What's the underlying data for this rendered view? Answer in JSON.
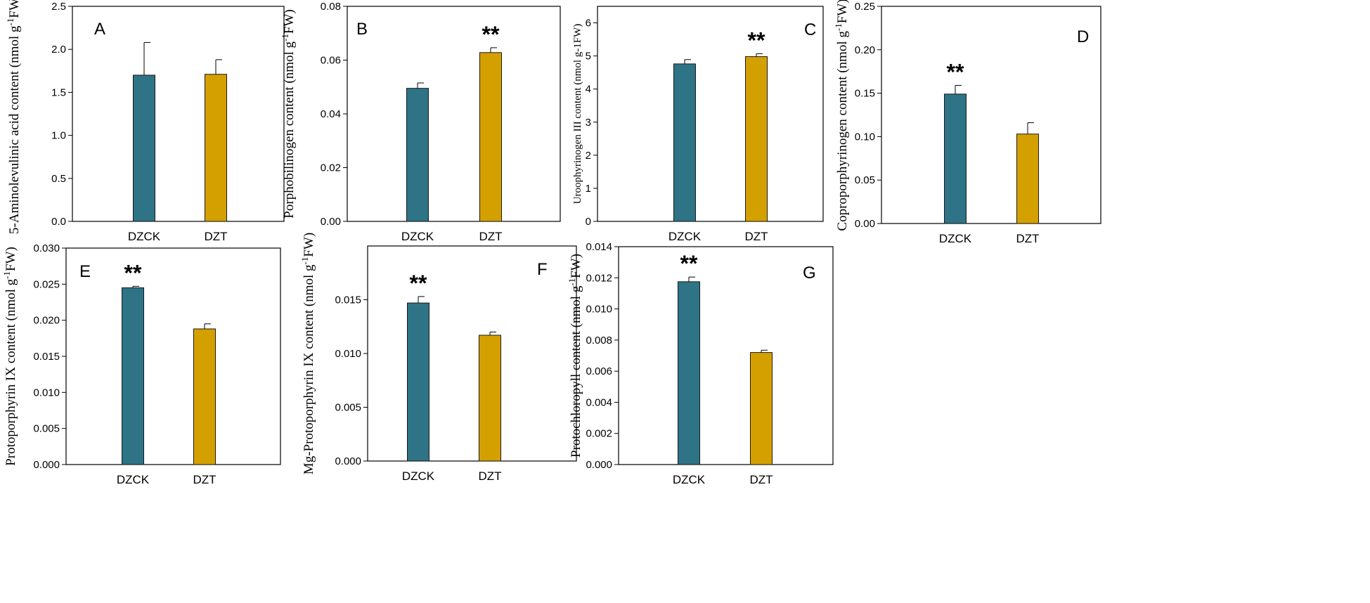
{
  "figure": {
    "colors": {
      "DZCK": "#2e7386",
      "DZT": "#d4a000",
      "axis": "#000000"
    }
  },
  "chart_data": [
    {
      "type": "bar",
      "panel": "A",
      "categories": [
        "DZCK",
        "DZT"
      ],
      "values": [
        1.7,
        1.71
      ],
      "errors": [
        0.38,
        0.17
      ],
      "ylim": [
        0,
        2.5
      ],
      "yticks": [
        "0.0",
        "0.5",
        "1.0",
        "1.5",
        "2.0",
        "2.5"
      ],
      "ylabel": {
        "pre": "5-Aminolevulinic acid content (nmol g",
        "sup": "-1",
        "post": "FW)"
      },
      "significance": [
        "",
        ""
      ]
    },
    {
      "type": "bar",
      "panel": "B",
      "categories": [
        "DZCK",
        "DZT"
      ],
      "values": [
        0.0495,
        0.0628
      ],
      "errors": [
        0.002,
        0.0018
      ],
      "ylim": [
        0,
        0.08
      ],
      "yticks": [
        "0.00",
        "0.02",
        "0.04",
        "0.06",
        "0.08"
      ],
      "ylabel": {
        "pre": "Porphobilinogen  content (nmol g",
        "sup": "-1",
        "post": "FW)"
      },
      "significance": [
        "",
        "**"
      ]
    },
    {
      "type": "bar",
      "panel": "C",
      "categories": [
        "DZCK",
        "DZT"
      ],
      "values": [
        4.76,
        4.98
      ],
      "errors": [
        0.13,
        0.09
      ],
      "ylim": [
        0,
        6.5
      ],
      "yticks": [
        "0",
        "1",
        "2",
        "3",
        "4",
        "5",
        "6"
      ],
      "ylabel": {
        "pre": "Uroophyrinogen III content (nmol g-1FW)",
        "sup": "",
        "post": ""
      },
      "significance": [
        "",
        "**"
      ]
    },
    {
      "type": "bar",
      "panel": "D",
      "categories": [
        "DZCK",
        "DZT"
      ],
      "values": [
        0.149,
        0.103
      ],
      "errors": [
        0.01,
        0.013
      ],
      "ylim": [
        0,
        0.25
      ],
      "yticks": [
        "0.00",
        "0.05",
        "0.10",
        "0.15",
        "0.20",
        "0.25"
      ],
      "ylabel": {
        "pre": "Coproporphyrinogen  content (nmol g",
        "sup": "-1",
        "post": "FW)"
      },
      "significance": [
        "**",
        ""
      ]
    },
    {
      "type": "bar",
      "panel": "E",
      "categories": [
        "DZCK",
        "DZT"
      ],
      "values": [
        0.0245,
        0.0188
      ],
      "errors": [
        0.0002,
        0.0007
      ],
      "ylim": [
        0,
        0.03
      ],
      "yticks": [
        "0.000",
        "0.005",
        "0.010",
        "0.015",
        "0.020",
        "0.025",
        "0.030"
      ],
      "ylabel": {
        "pre": "Protoporphyrin IX content (nmol g",
        "sup": "-1",
        "post": "FW)"
      },
      "significance": [
        "**",
        ""
      ]
    },
    {
      "type": "bar",
      "panel": "F",
      "categories": [
        "DZCK",
        "DZT"
      ],
      "values": [
        0.0147,
        0.0117
      ],
      "errors": [
        0.0006,
        0.0003
      ],
      "ylim": [
        0,
        0.02
      ],
      "yticks": [
        "0.000",
        "0.005",
        "0.010",
        "0.015"
      ],
      "ylabel": {
        "pre": "Mg-Protoporphyrin IX content (nmol g",
        "sup": "-1",
        "post": "FW)"
      },
      "significance": [
        "**",
        ""
      ]
    },
    {
      "type": "bar",
      "panel": "G",
      "categories": [
        "DZCK",
        "DZT"
      ],
      "values": [
        0.01175,
        0.0072
      ],
      "errors": [
        0.0003,
        0.00015
      ],
      "ylim": [
        0,
        0.014
      ],
      "yticks": [
        "0.000",
        "0.002",
        "0.004",
        "0.006",
        "0.008",
        "0.010",
        "0.012",
        "0.014"
      ],
      "ylabel": {
        "pre": "Protochloropyll content (nmol g",
        "sup": "-1",
        "post": "FW)"
      },
      "significance": [
        "**",
        ""
      ]
    }
  ]
}
